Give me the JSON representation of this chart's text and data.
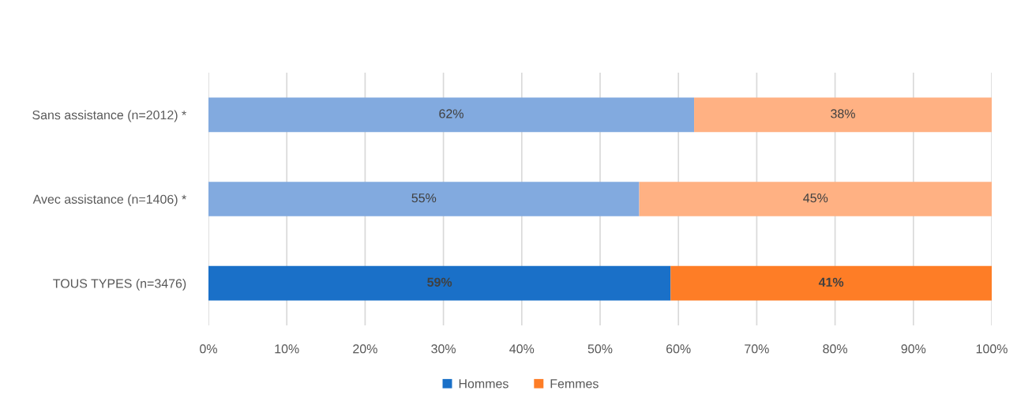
{
  "chart_data": {
    "type": "bar",
    "orientation": "horizontal",
    "stacked": true,
    "categories": [
      "Sans assistance (n=2012) *",
      "Avec assistance (n=1406) *",
      "TOUS TYPES (n=3476)"
    ],
    "series": [
      {
        "name": "Hommes",
        "color": "#1a70c8",
        "colors": [
          "#82aadf",
          "#82aadf",
          "#1a70c8"
        ],
        "values": [
          62,
          55,
          59
        ],
        "value_labels": [
          "62%",
          "55%",
          "59%"
        ]
      },
      {
        "name": "Femmes",
        "color": "#fe7d26",
        "colors": [
          "#ffb183",
          "#ffb183",
          "#fe7d26"
        ],
        "values": [
          38,
          45,
          41
        ],
        "value_labels": [
          "38%",
          "45%",
          "41%"
        ]
      }
    ],
    "xlim": [
      0,
      100
    ],
    "xticks": [
      {
        "value": 0,
        "label": "0%"
      },
      {
        "value": 10,
        "label": "10%"
      },
      {
        "value": 20,
        "label": "20%"
      },
      {
        "value": 30,
        "label": "30%"
      },
      {
        "value": 40,
        "label": "40%"
      },
      {
        "value": 50,
        "label": "50%"
      },
      {
        "value": 60,
        "label": "60%"
      },
      {
        "value": 70,
        "label": "70%"
      },
      {
        "value": 80,
        "label": "80%"
      },
      {
        "value": 90,
        "label": "90%"
      },
      {
        "value": 100,
        "label": "100%"
      }
    ],
    "grid": "x",
    "legend": "bottom"
  }
}
